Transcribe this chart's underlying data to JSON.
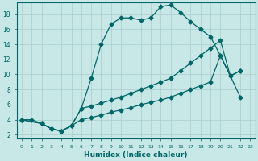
{
  "xlabel": "Humidex (Indice chaleur)",
  "bg_color": "#c8e8e8",
  "line_color": "#006666",
  "grid_color": "#aacccc",
  "xlim": [
    -0.5,
    23.5
  ],
  "ylim": [
    1.5,
    19.5
  ],
  "yticks": [
    2,
    4,
    6,
    8,
    10,
    12,
    14,
    16,
    18
  ],
  "xticks": [
    0,
    1,
    2,
    3,
    4,
    5,
    6,
    7,
    8,
    9,
    10,
    11,
    12,
    13,
    14,
    15,
    16,
    17,
    18,
    19,
    20,
    21,
    22,
    23
  ],
  "line1_x": [
    0,
    1,
    2,
    3,
    4,
    5,
    6,
    7,
    8,
    9,
    10,
    11,
    12,
    13,
    14,
    15,
    16,
    17,
    18,
    19,
    20,
    21,
    22
  ],
  "line1_y": [
    4,
    4,
    3.5,
    2.8,
    2.5,
    3.2,
    5.5,
    9.5,
    14,
    16.7,
    17.5,
    17.5,
    17.2,
    17.5,
    19.0,
    19.2,
    18.2,
    17.0,
    16.0,
    15.0,
    12.5,
    9.8,
    10.5
  ],
  "line2_x": [
    0,
    2,
    3,
    4,
    5,
    6,
    7,
    8,
    9,
    10,
    11,
    12,
    13,
    14,
    15,
    16,
    17,
    18,
    19,
    20,
    21,
    22
  ],
  "line2_y": [
    4,
    3.5,
    2.8,
    2.5,
    3.2,
    5.5,
    5.8,
    6.2,
    6.6,
    7.0,
    7.5,
    8.0,
    8.5,
    9.0,
    9.5,
    10.5,
    11.5,
    12.5,
    13.5,
    14.5,
    9.8,
    10.5
  ],
  "line3_x": [
    0,
    2,
    3,
    4,
    5,
    6,
    7,
    8,
    9,
    10,
    11,
    12,
    13,
    14,
    15,
    16,
    17,
    18,
    19,
    20,
    21,
    22
  ],
  "line3_y": [
    4,
    3.5,
    2.8,
    2.5,
    3.2,
    4.0,
    4.3,
    4.6,
    5.0,
    5.3,
    5.6,
    6.0,
    6.3,
    6.6,
    7.0,
    7.5,
    8.0,
    8.5,
    9.0,
    12.5,
    9.8,
    7.0
  ],
  "marker": "D",
  "marker_size": 2.5,
  "linewidth": 0.9
}
